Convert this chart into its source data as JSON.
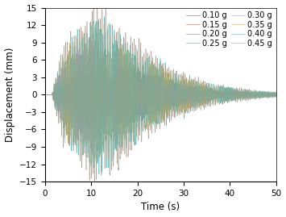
{
  "title": "",
  "xlabel": "Time (s)",
  "ylabel": "Displacement (mm)",
  "xlim": [
    0,
    50
  ],
  "ylim": [
    -15,
    15
  ],
  "yticks": [
    -15,
    -12,
    -9,
    -6,
    -3,
    0,
    3,
    6,
    9,
    12,
    15
  ],
  "xticks": [
    0,
    10,
    20,
    30,
    40,
    50
  ],
  "series": [
    {
      "label": "0.10 g",
      "color": "#555555",
      "amplitude": 4.0,
      "freq": 2.8,
      "decay": 0.13,
      "t_start": 1.5,
      "seed": 10
    },
    {
      "label": "0.15 g",
      "color": "#e05030",
      "amplitude": 5.0,
      "freq": 2.8,
      "decay": 0.13,
      "t_start": 1.5,
      "seed": 20
    },
    {
      "label": "0.20 g",
      "color": "#5577cc",
      "amplitude": 6.5,
      "freq": 2.8,
      "decay": 0.13,
      "t_start": 1.5,
      "seed": 30
    },
    {
      "label": "0.25 g",
      "color": "#44aa55",
      "amplitude": 7.5,
      "freq": 2.8,
      "decay": 0.13,
      "t_start": 1.5,
      "seed": 40
    },
    {
      "label": "0.30 g",
      "color": "#bb88dd",
      "amplitude": 9.0,
      "freq": 2.8,
      "decay": 0.13,
      "t_start": 1.5,
      "seed": 50
    },
    {
      "label": "0.35 g",
      "color": "#ccaa33",
      "amplitude": 10.5,
      "freq": 2.8,
      "decay": 0.13,
      "t_start": 1.5,
      "seed": 60
    },
    {
      "label": "0.40 g",
      "color": "#22cccc",
      "amplitude": 12.0,
      "freq": 2.8,
      "decay": 0.13,
      "t_start": 1.5,
      "seed": 70
    },
    {
      "label": "0.45 g",
      "color": "#aa9988",
      "amplitude": 13.5,
      "freq": 2.8,
      "decay": 0.13,
      "t_start": 1.5,
      "seed": 80
    }
  ],
  "legend_ncol": 2,
  "legend_fontsize": 7.0,
  "figsize": [
    3.55,
    2.69
  ],
  "dpi": 100
}
